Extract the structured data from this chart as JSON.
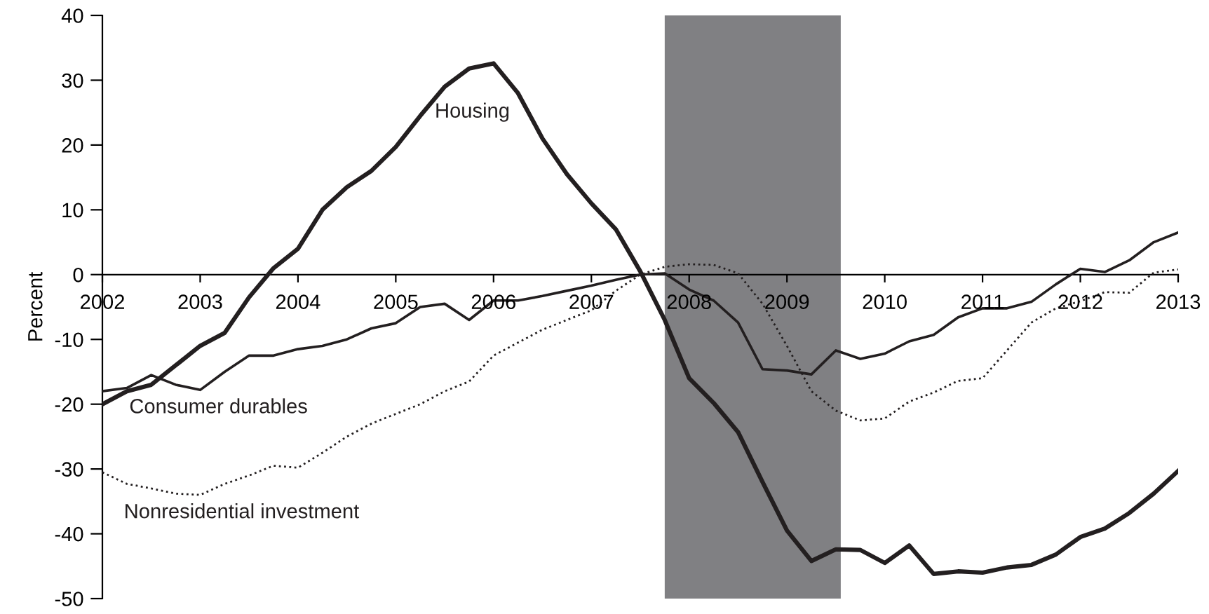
{
  "chart_data": {
    "type": "line",
    "ylabel": "Percent",
    "xlim": [
      2002,
      2013
    ],
    "ylim": [
      -50,
      40
    ],
    "xticks": [
      2002,
      2003,
      2004,
      2005,
      2006,
      2007,
      2008,
      2009,
      2010,
      2011,
      2012,
      2013
    ],
    "yticks": [
      -50,
      -40,
      -30,
      -20,
      -10,
      0,
      10,
      20,
      30,
      40
    ],
    "grid": false,
    "legend": false,
    "marker": "none",
    "x": [
      2002,
      2002.25,
      2002.5,
      2002.75,
      2003,
      2003.25,
      2003.5,
      2003.75,
      2004,
      2004.25,
      2004.5,
      2004.75,
      2005,
      2005.25,
      2005.5,
      2005.75,
      2006,
      2006.25,
      2006.5,
      2006.75,
      2007,
      2007.25,
      2007.5,
      2007.75,
      2008,
      2008.25,
      2008.5,
      2008.75,
      2009,
      2009.25,
      2009.5,
      2009.75,
      2010,
      2010.25,
      2010.5,
      2010.75,
      2011,
      2011.25,
      2011.5,
      2011.75,
      2012,
      2012.25,
      2012.5,
      2012.75,
      2013
    ],
    "series": [
      {
        "name": "Housing",
        "color": "#231f20",
        "line_style": "solid",
        "values": [
          -20,
          -18,
          -17,
          -14,
          -11,
          -9,
          -3.5,
          1,
          4,
          10,
          13.5,
          16,
          19.7,
          24.5,
          29,
          31.8,
          32.6,
          28,
          21,
          15.5,
          11,
          7,
          0.5,
          -7,
          -16,
          -19.8,
          -24.3,
          -32,
          -39.5,
          -44.2,
          -42.4,
          -42.5,
          -44.5,
          -41.8,
          -46.2,
          -45.8,
          -46,
          -45.2,
          -44.8,
          -43.2,
          -40.5,
          -39.2,
          -36.8,
          -33.8,
          -30.3
        ]
      },
      {
        "name": "Consumer durables",
        "color": "#231f20",
        "line_style": "solid",
        "values": [
          -18,
          -17.5,
          -15.5,
          -17,
          -17.8,
          -15,
          -12.5,
          -12.5,
          -11.5,
          -11,
          -10,
          -8.3,
          -7.5,
          -5,
          -4.5,
          -7,
          -4,
          -4,
          -3.3,
          -2.5,
          -1.7,
          -0.8,
          0,
          0.2,
          -2.3,
          -4,
          -7.4,
          -14.6,
          -14.8,
          -15.4,
          -11.7,
          -13,
          -12.2,
          -10.3,
          -9.3,
          -6.6,
          -5.2,
          -5.2,
          -4.2,
          -1.5,
          0.9,
          0.4,
          2.2,
          5,
          6.5
        ]
      },
      {
        "name": "Nonresidential investment",
        "color": "#231f20",
        "line_style": "dotted",
        "values": [
          -30.5,
          -32.3,
          -33,
          -33.8,
          -34,
          -32.3,
          -31,
          -29.5,
          -29.8,
          -27.5,
          -25,
          -23,
          -21.5,
          -20,
          -18,
          -16.5,
          -12.5,
          -10.5,
          -8.5,
          -7,
          -5.5,
          -2.5,
          0,
          1.2,
          1.6,
          1.5,
          0.2,
          -4.5,
          -11,
          -18,
          -21,
          -22.5,
          -22.2,
          -19.6,
          -18.2,
          -16.4,
          -16,
          -11.7,
          -7.4,
          -5.2,
          -4.1,
          -2.7,
          -2.8,
          0.3,
          0.8
        ]
      }
    ],
    "bands": [
      {
        "axis": "x",
        "from": 2007.75,
        "to": 2009.55,
        "color": "#808083"
      }
    ]
  }
}
